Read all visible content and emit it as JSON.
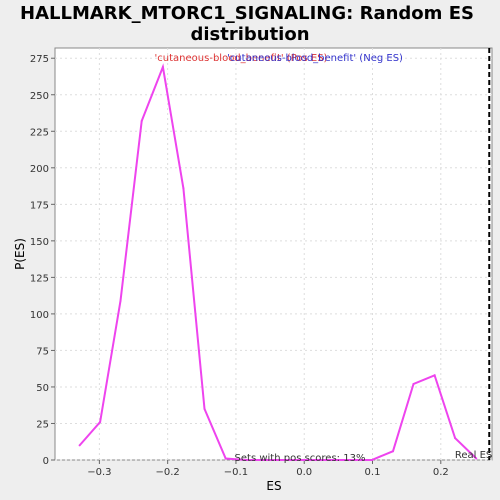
{
  "chart_data": {
    "type": "line",
    "title_lines": [
      "HALLMARK_MTORC1_SIGNALING: Random ES",
      "distribution"
    ],
    "xlabel": "ES",
    "ylabel": "P(ES)",
    "xlim": [
      -0.365,
      0.275
    ],
    "ylim": [
      0,
      282
    ],
    "x_ticks": [
      -0.3,
      -0.2,
      -0.1,
      0.0,
      0.1,
      0.2
    ],
    "x_tick_labels": [
      "−0.3",
      "−0.2",
      "−0.1",
      "0.0",
      "0.1",
      "0.2"
    ],
    "y_ticks": [
      0,
      25,
      50,
      75,
      100,
      125,
      150,
      175,
      200,
      225,
      250,
      275
    ],
    "y_tick_labels": [
      "0",
      "25",
      "50",
      "75",
      "100",
      "125",
      "150",
      "175",
      "200",
      "225",
      "250",
      "275"
    ],
    "grid": true,
    "series": [
      {
        "color": "#ee44ee",
        "x": [
          -0.329,
          -0.299,
          -0.269,
          -0.238,
          -0.207,
          -0.177,
          -0.146,
          -0.115,
          -0.085,
          -0.054,
          -0.024,
          0.007,
          0.038,
          0.068,
          0.099,
          0.13,
          0.16,
          0.191,
          0.221,
          0.252
        ],
        "y": [
          10,
          26,
          109,
          232,
          269,
          186,
          35,
          1,
          0,
          0,
          0,
          0,
          0,
          0,
          0,
          6,
          52,
          58,
          15,
          1
        ]
      }
    ],
    "legend": {
      "placement": "top-center",
      "pos_label": "'cutaneous-blood_benefit' (Pos ES)",
      "neg_label": "'cutaneous-blood_benefit' (Neg ES)",
      "pos_color": "#dd3333",
      "neg_color": "#3333cc"
    },
    "real_es": {
      "x": 0.271,
      "label": "Real ES"
    },
    "annotation": "Sets with pos scores: 13%"
  }
}
